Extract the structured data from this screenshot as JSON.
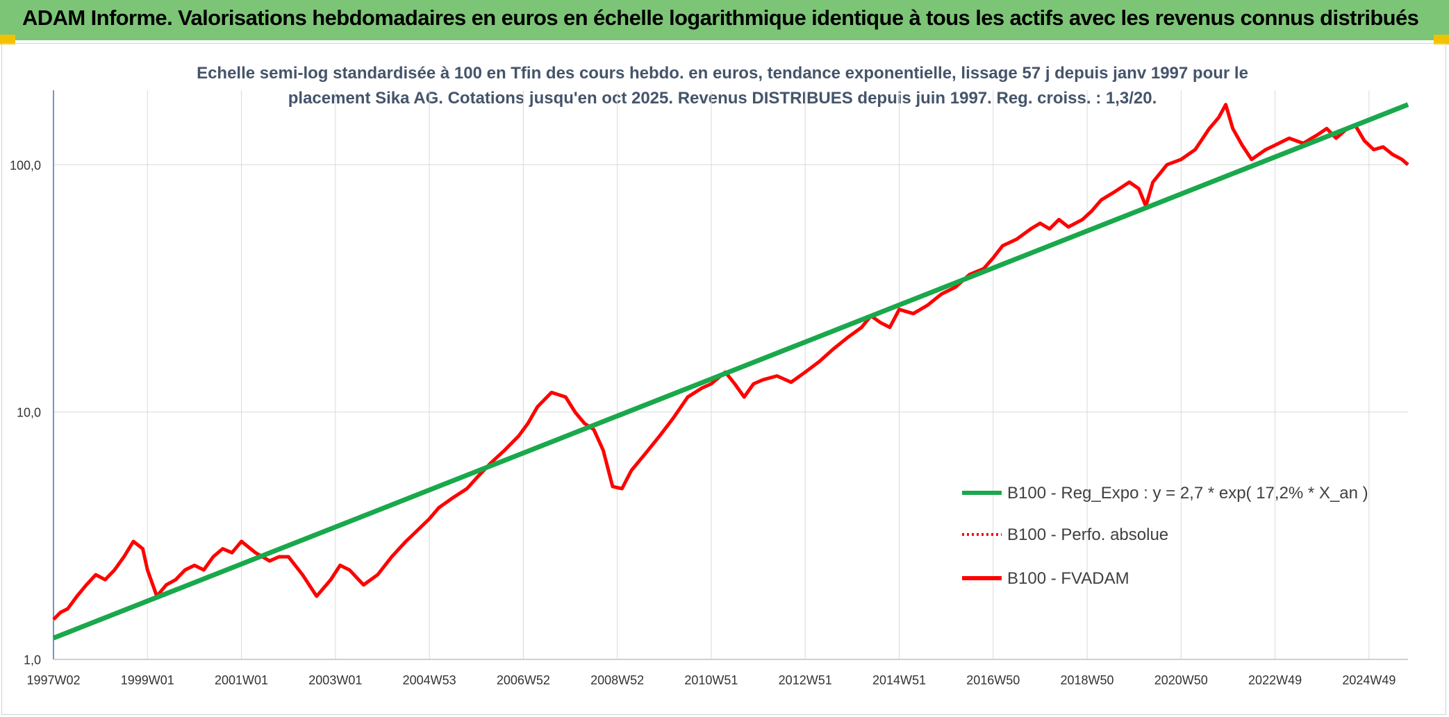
{
  "header": {
    "title": "ADAM Informe. Valorisations hebdomadaires en euros en échelle logarithmique identique à tous les actifs avec les revenus connus distribués"
  },
  "colors": {
    "header_bg": "#7cc576",
    "trend": "#19a84b",
    "price": "#ff0000",
    "grid": "#d9d9d9",
    "axis": "#4472c4"
  },
  "chart_data": {
    "type": "line",
    "title_lines": [
      "Echelle semi-log standardisée à 100 en Tfin des cours hebdo. en euros, tendance exponentielle, lissage 57 j depuis janv 1997 pour le",
      "placement Sika AG. Cotations jusqu'en oct 2025. Revenus DISTRIBUES depuis juin 1997. Reg. croiss. : 1,3/20."
    ],
    "y_scale": "log",
    "ylim": [
      1,
      200
    ],
    "xlim": [
      1997.0,
      2025.83
    ],
    "y_ticks": [
      {
        "value": 1,
        "label": "1,0"
      },
      {
        "value": 10,
        "label": "10,0"
      },
      {
        "value": 100,
        "label": "100,0"
      }
    ],
    "x_ticks": [
      {
        "value": 1997.0,
        "label": "1997W02"
      },
      {
        "value": 1999.0,
        "label": "1999W01"
      },
      {
        "value": 2001.0,
        "label": "2001W01"
      },
      {
        "value": 2003.0,
        "label": "2003W01"
      },
      {
        "value": 2005.0,
        "label": "2004W53"
      },
      {
        "value": 2007.0,
        "label": "2006W52"
      },
      {
        "value": 2009.0,
        "label": "2008W52"
      },
      {
        "value": 2011.0,
        "label": "2010W51"
      },
      {
        "value": 2013.0,
        "label": "2012W51"
      },
      {
        "value": 2015.0,
        "label": "2014W51"
      },
      {
        "value": 2017.0,
        "label": "2016W50"
      },
      {
        "value": 2019.0,
        "label": "2018W50"
      },
      {
        "value": 2021.0,
        "label": "2020W50"
      },
      {
        "value": 2023.0,
        "label": "2022W49"
      },
      {
        "value": 2025.0,
        "label": "2024W49"
      }
    ],
    "grid": true,
    "legend_position": "bottom-right",
    "series": [
      {
        "name": "B100 - Reg_Expo : y = 2,7 * exp( 17,2% *  X_an )",
        "style": "solid-thick",
        "x": [
          1997.0,
          2025.83
        ],
        "y": [
          1.22,
          175
        ]
      },
      {
        "name": "B100 - Perfo. absolue",
        "style": "dotted",
        "x": [],
        "y": []
      },
      {
        "name": "B100 - FVADAM",
        "style": "solid",
        "x": [
          1997.0,
          1997.15,
          1997.3,
          1997.5,
          1997.7,
          1997.9,
          1998.1,
          1998.3,
          1998.5,
          1998.7,
          1998.9,
          1999.0,
          1999.2,
          1999.4,
          1999.6,
          1999.8,
          2000.0,
          2000.2,
          2000.4,
          2000.6,
          2000.8,
          2001.0,
          2001.3,
          2001.6,
          2001.8,
          2002.0,
          2002.3,
          2002.6,
          2002.9,
          2003.1,
          2003.3,
          2003.6,
          2003.9,
          2004.2,
          2004.5,
          2004.8,
          2005.0,
          2005.2,
          2005.5,
          2005.8,
          2006.0,
          2006.3,
          2006.6,
          2006.9,
          2007.1,
          2007.3,
          2007.6,
          2007.9,
          2008.1,
          2008.3,
          2008.5,
          2008.7,
          2008.9,
          2009.1,
          2009.3,
          2009.6,
          2009.9,
          2010.2,
          2010.5,
          2010.8,
          2011.0,
          2011.3,
          2011.5,
          2011.7,
          2011.9,
          2012.1,
          2012.4,
          2012.7,
          2013.0,
          2013.3,
          2013.6,
          2013.9,
          2014.2,
          2014.4,
          2014.6,
          2014.8,
          2015.0,
          2015.3,
          2015.6,
          2015.9,
          2016.2,
          2016.5,
          2016.8,
          2017.0,
          2017.2,
          2017.5,
          2017.8,
          2018.0,
          2018.2,
          2018.4,
          2018.6,
          2018.9,
          2019.1,
          2019.3,
          2019.6,
          2019.9,
          2020.1,
          2020.25,
          2020.4,
          2020.7,
          2021.0,
          2021.3,
          2021.6,
          2021.8,
          2021.95,
          2022.1,
          2022.3,
          2022.5,
          2022.8,
          2023.0,
          2023.3,
          2023.6,
          2023.9,
          2024.1,
          2024.3,
          2024.5,
          2024.7,
          2024.9,
          2025.1,
          2025.3,
          2025.5,
          2025.7,
          2025.83
        ],
        "y": [
          1.45,
          1.55,
          1.6,
          1.8,
          2.0,
          2.2,
          2.1,
          2.3,
          2.6,
          3.0,
          2.8,
          2.3,
          1.8,
          2.0,
          2.1,
          2.3,
          2.4,
          2.3,
          2.6,
          2.8,
          2.7,
          3.0,
          2.7,
          2.5,
          2.6,
          2.6,
          2.2,
          1.8,
          2.1,
          2.4,
          2.3,
          2.0,
          2.2,
          2.6,
          3.0,
          3.4,
          3.7,
          4.1,
          4.5,
          4.9,
          5.4,
          6.2,
          7.0,
          8.0,
          9.0,
          10.5,
          12.0,
          11.5,
          10.0,
          9.0,
          8.5,
          7.0,
          5.0,
          4.9,
          5.8,
          6.8,
          8.0,
          9.5,
          11.5,
          12.5,
          13.0,
          14.5,
          13.0,
          11.5,
          13.0,
          13.5,
          14.0,
          13.2,
          14.5,
          16.0,
          18.0,
          20.0,
          22.0,
          24.5,
          23.0,
          22.0,
          26.0,
          25.0,
          27.0,
          30.0,
          32.0,
          36.0,
          38.0,
          42.0,
          47.0,
          50.0,
          55.0,
          58.0,
          55.0,
          60.0,
          56.0,
          60.0,
          65.0,
          72.0,
          78.0,
          85.0,
          80.0,
          68.0,
          85.0,
          100.0,
          105.0,
          115.0,
          140.0,
          155.0,
          175.0,
          140.0,
          120.0,
          105.0,
          115.0,
          120.0,
          128.0,
          122.0,
          132.0,
          140.0,
          128.0,
          138.0,
          145.0,
          125.0,
          115.0,
          118.0,
          110.0,
          105.0,
          100.0
        ]
      }
    ]
  }
}
